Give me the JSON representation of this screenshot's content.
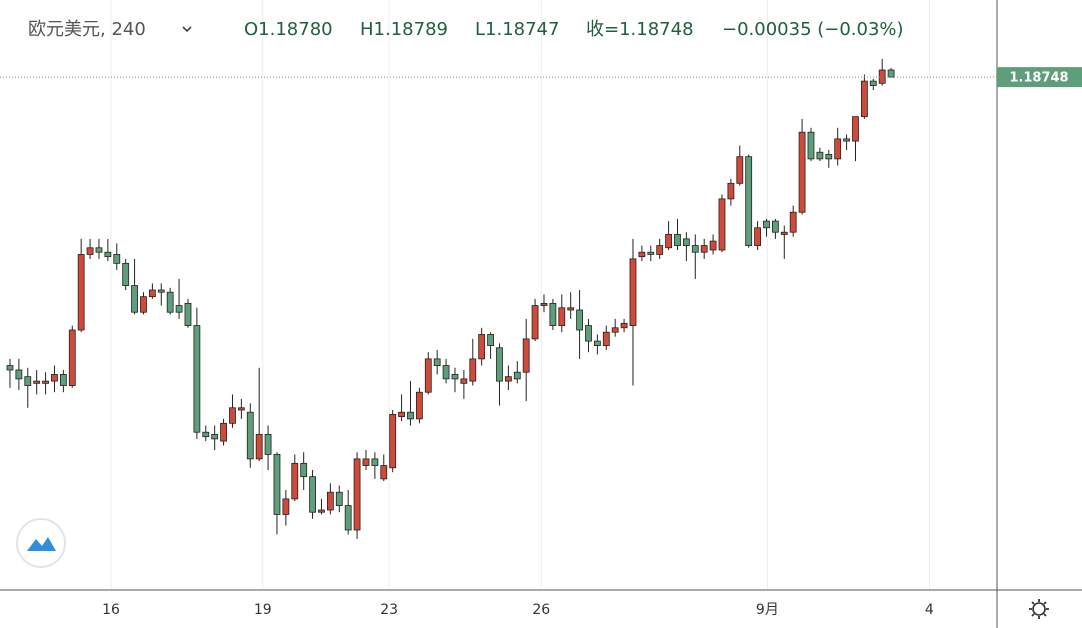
{
  "chart_data": {
    "type": "candlestick",
    "title": "欧元美元, 240",
    "header": [
      "O1.18780",
      "H1.18789",
      "L1.18747",
      "收=1.18748",
      "−0.00035 (−0.03%)"
    ],
    "up_color": "#d04a39",
    "down_color": "#5e9e7a",
    "last_price": 1.18748,
    "last_price_color": "#5e9e7a",
    "xlim": [
      -1.12,
      110.9
    ],
    "ylim": [
      1.1644,
      1.19095
    ],
    "xticks": [
      {
        "value": 11.35,
        "label": "16"
      },
      {
        "value": 28.4,
        "label": "19"
      },
      {
        "value": 42.6,
        "label": "23"
      },
      {
        "value": 59.7,
        "label": "26"
      },
      {
        "value": 85.1,
        "label": "9月"
      },
      {
        "value": 103.3,
        "label": "4"
      }
    ],
    "grid": true,
    "x": [
      0,
      1,
      2,
      3,
      4,
      5,
      6,
      7,
      8,
      9,
      10,
      11,
      12,
      13,
      14,
      15,
      16,
      17,
      18,
      19,
      20,
      21,
      22,
      23,
      24,
      25,
      26,
      27,
      28,
      29,
      30,
      31,
      32,
      33,
      34,
      35,
      36,
      37,
      38,
      39,
      40,
      41,
      42,
      43,
      44,
      45,
      46,
      47,
      48,
      49,
      50,
      51,
      52,
      53,
      54,
      55,
      56,
      57,
      58,
      59,
      60,
      61,
      62,
      63,
      64,
      65,
      66,
      67,
      68,
      69,
      70,
      71,
      72,
      73,
      74,
      75,
      76,
      77,
      78,
      79,
      80,
      81,
      82,
      83,
      84,
      85,
      86,
      87,
      88,
      89,
      90,
      91,
      92,
      93,
      94,
      95,
      96,
      97,
      98,
      99
    ],
    "open": [
      1.1745,
      1.1743,
      1.174,
      1.1737,
      1.1737,
      1.1738,
      1.1741,
      1.1736,
      1.1761,
      1.1795,
      1.1798,
      1.1796,
      1.1795,
      1.1791,
      1.1781,
      1.1769,
      1.1776,
      1.1779,
      1.1778,
      1.1772,
      1.1773,
      1.1763,
      1.1715,
      1.1714,
      1.1711,
      1.1719,
      1.1725,
      1.1724,
      1.1703,
      1.1714,
      1.1705,
      1.1678,
      1.1685,
      1.1701,
      1.1695,
      1.1679,
      1.168,
      1.1688,
      1.1682,
      1.1671,
      1.17,
      1.1703,
      1.1694,
      1.1699,
      1.1722,
      1.1724,
      1.1721,
      1.1733,
      1.1748,
      1.1745,
      1.1741,
      1.1737,
      1.1738,
      1.1748,
      1.1759,
      1.1753,
      1.1738,
      1.1742,
      1.1742,
      1.1757,
      1.1772,
      1.1773,
      1.1763,
      1.177,
      1.177,
      1.1763,
      1.1756,
      1.1754,
      1.176,
      1.1762,
      1.1763,
      1.1794,
      1.1796,
      1.1795,
      1.1798,
      1.1804,
      1.1802,
      1.1799,
      1.1796,
      1.1797,
      1.1797,
      1.182,
      1.1827,
      1.1839,
      1.1799,
      1.181,
      1.181,
      1.1804,
      1.1805,
      1.1814,
      1.185,
      1.1841,
      1.184,
      1.1838,
      1.1847,
      1.1846,
      1.1857,
      1.1873,
      1.1872,
      1.1878
    ],
    "high": [
      1.1748,
      1.1748,
      1.1744,
      1.1743,
      1.1742,
      1.1745,
      1.1743,
      1.1763,
      1.1802,
      1.1802,
      1.1802,
      1.1802,
      1.18,
      1.1793,
      1.1793,
      1.1778,
      1.1782,
      1.1782,
      1.178,
      1.1784,
      1.1775,
      1.1771,
      1.1718,
      1.1718,
      1.1721,
      1.1732,
      1.173,
      1.1728,
      1.1744,
      1.1718,
      1.1706,
      1.1689,
      1.1705,
      1.1706,
      1.1698,
      1.1685,
      1.1692,
      1.1691,
      1.1689,
      1.1706,
      1.1707,
      1.1706,
      1.1705,
      1.1725,
      1.1732,
      1.1738,
      1.1735,
      1.1751,
      1.1752,
      1.1748,
      1.1744,
      1.1743,
      1.1757,
      1.1762,
      1.176,
      1.1755,
      1.1745,
      1.1747,
      1.1766,
      1.1775,
      1.1777,
      1.1775,
      1.1777,
      1.1778,
      1.1779,
      1.1766,
      1.1759,
      1.1763,
      1.1766,
      1.1766,
      1.1802,
      1.1799,
      1.1799,
      1.1802,
      1.181,
      1.1811,
      1.1805,
      1.1804,
      1.1802,
      1.1804,
      1.1822,
      1.1829,
      1.1844,
      1.184,
      1.181,
      1.1811,
      1.1811,
      1.1808,
      1.1817,
      1.1856,
      1.1852,
      1.1843,
      1.1842,
      1.1852,
      1.1849,
      1.1857,
      1.1876,
      1.1874,
      1.1883,
      1.18789
    ],
    "low": [
      1.1735,
      1.1734,
      1.1726,
      1.1732,
      1.1732,
      1.1733,
      1.1733,
      1.1735,
      1.176,
      1.1793,
      1.1793,
      1.1792,
      1.1788,
      1.1779,
      1.1768,
      1.1768,
      1.1775,
      1.1772,
      1.1768,
      1.1766,
      1.1762,
      1.1712,
      1.1711,
      1.1707,
      1.1709,
      1.1717,
      1.1721,
      1.1699,
      1.1702,
      1.1698,
      1.1669,
      1.1673,
      1.1684,
      1.1689,
      1.1676,
      1.1678,
      1.1678,
      1.1679,
      1.1669,
      1.1667,
      1.1698,
      1.1694,
      1.1693,
      1.1697,
      1.172,
      1.1718,
      1.1719,
      1.1732,
      1.1741,
      1.1737,
      1.1733,
      1.173,
      1.1736,
      1.1745,
      1.1748,
      1.1727,
      1.1734,
      1.1737,
      1.1729,
      1.1756,
      1.1769,
      1.1761,
      1.176,
      1.1766,
      1.1748,
      1.1751,
      1.175,
      1.1752,
      1.1758,
      1.176,
      1.1736,
      1.1792,
      1.1792,
      1.1793,
      1.1797,
      1.1797,
      1.1792,
      1.1784,
      1.1793,
      1.1795,
      1.1796,
      1.1817,
      1.1826,
      1.1798,
      1.1797,
      1.1803,
      1.1802,
      1.1793,
      1.1803,
      1.1813,
      1.1837,
      1.1837,
      1.1834,
      1.1835,
      1.1842,
      1.1837,
      1.1856,
      1.1869,
      1.1871,
      1.18747
    ],
    "close": [
      1.1743,
      1.1739,
      1.1736,
      1.1738,
      1.1738,
      1.1741,
      1.1736,
      1.1761,
      1.1795,
      1.1798,
      1.1796,
      1.1794,
      1.1791,
      1.1781,
      1.1769,
      1.1776,
      1.1779,
      1.1778,
      1.1769,
      1.1769,
      1.1763,
      1.1715,
      1.1713,
      1.1712,
      1.1719,
      1.1726,
      1.1726,
      1.1703,
      1.1714,
      1.1705,
      1.1678,
      1.1685,
      1.1701,
      1.1695,
      1.1679,
      1.168,
      1.1688,
      1.1682,
      1.1671,
      1.1703,
      1.1703,
      1.17,
      1.17,
      1.1723,
      1.1724,
      1.1721,
      1.1733,
      1.1748,
      1.1745,
      1.1739,
      1.1739,
      1.1739,
      1.1748,
      1.1759,
      1.1754,
      1.1738,
      1.174,
      1.1739,
      1.1757,
      1.1772,
      1.1773,
      1.1763,
      1.1771,
      1.1771,
      1.1761,
      1.1756,
      1.1754,
      1.176,
      1.1762,
      1.1764,
      1.1793,
      1.1796,
      1.1795,
      1.1799,
      1.1804,
      1.1799,
      1.1799,
      1.1796,
      1.1799,
      1.1801,
      1.182,
      1.1827,
      1.1839,
      1.1799,
      1.1807,
      1.1807,
      1.1805,
      1.1805,
      1.1814,
      1.185,
      1.1838,
      1.1838,
      1.1838,
      1.1847,
      1.1846,
      1.1857,
      1.1873,
      1.1871,
      1.1878,
      1.18748
    ]
  }
}
